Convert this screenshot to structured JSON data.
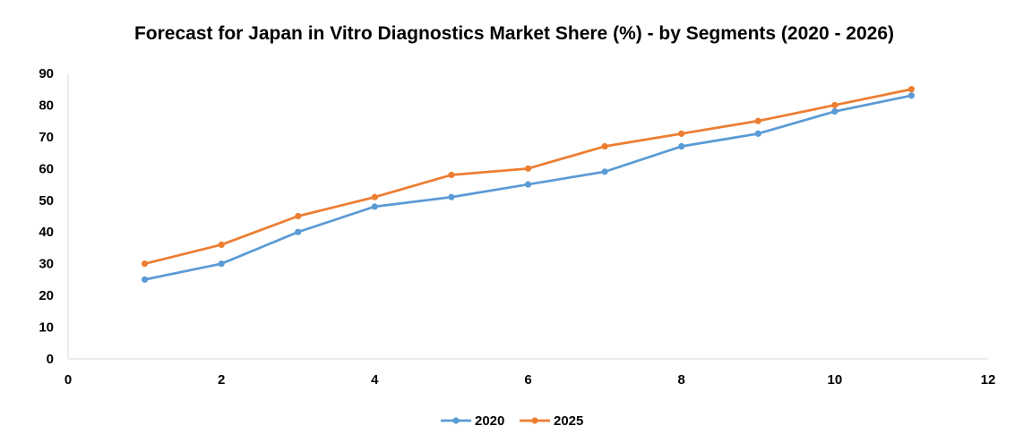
{
  "chart_data": {
    "type": "line",
    "title": "Forecast for Japan in Vitro Diagnostics Market Shere (%) - by Segments (2020 - 2026)",
    "xlabel": "",
    "ylabel": "",
    "xlim": [
      0,
      12
    ],
    "ylim": [
      0,
      90
    ],
    "x_ticks": [
      0,
      2,
      4,
      6,
      8,
      10,
      12
    ],
    "y_ticks": [
      0,
      10,
      20,
      30,
      40,
      50,
      60,
      70,
      80,
      90
    ],
    "grid": false,
    "legend_position": "bottom",
    "x": [
      1,
      2,
      3,
      4,
      5,
      6,
      7,
      8,
      9,
      10,
      11
    ],
    "series": [
      {
        "name": "2020",
        "color": "#5b9bd5",
        "values": [
          25,
          30,
          40,
          48,
          51,
          55,
          59,
          67,
          71,
          78,
          83
        ]
      },
      {
        "name": "2025",
        "color": "#ed7d31",
        "values": [
          30,
          36,
          45,
          51,
          58,
          60,
          67,
          71,
          75,
          80,
          85
        ]
      }
    ]
  }
}
